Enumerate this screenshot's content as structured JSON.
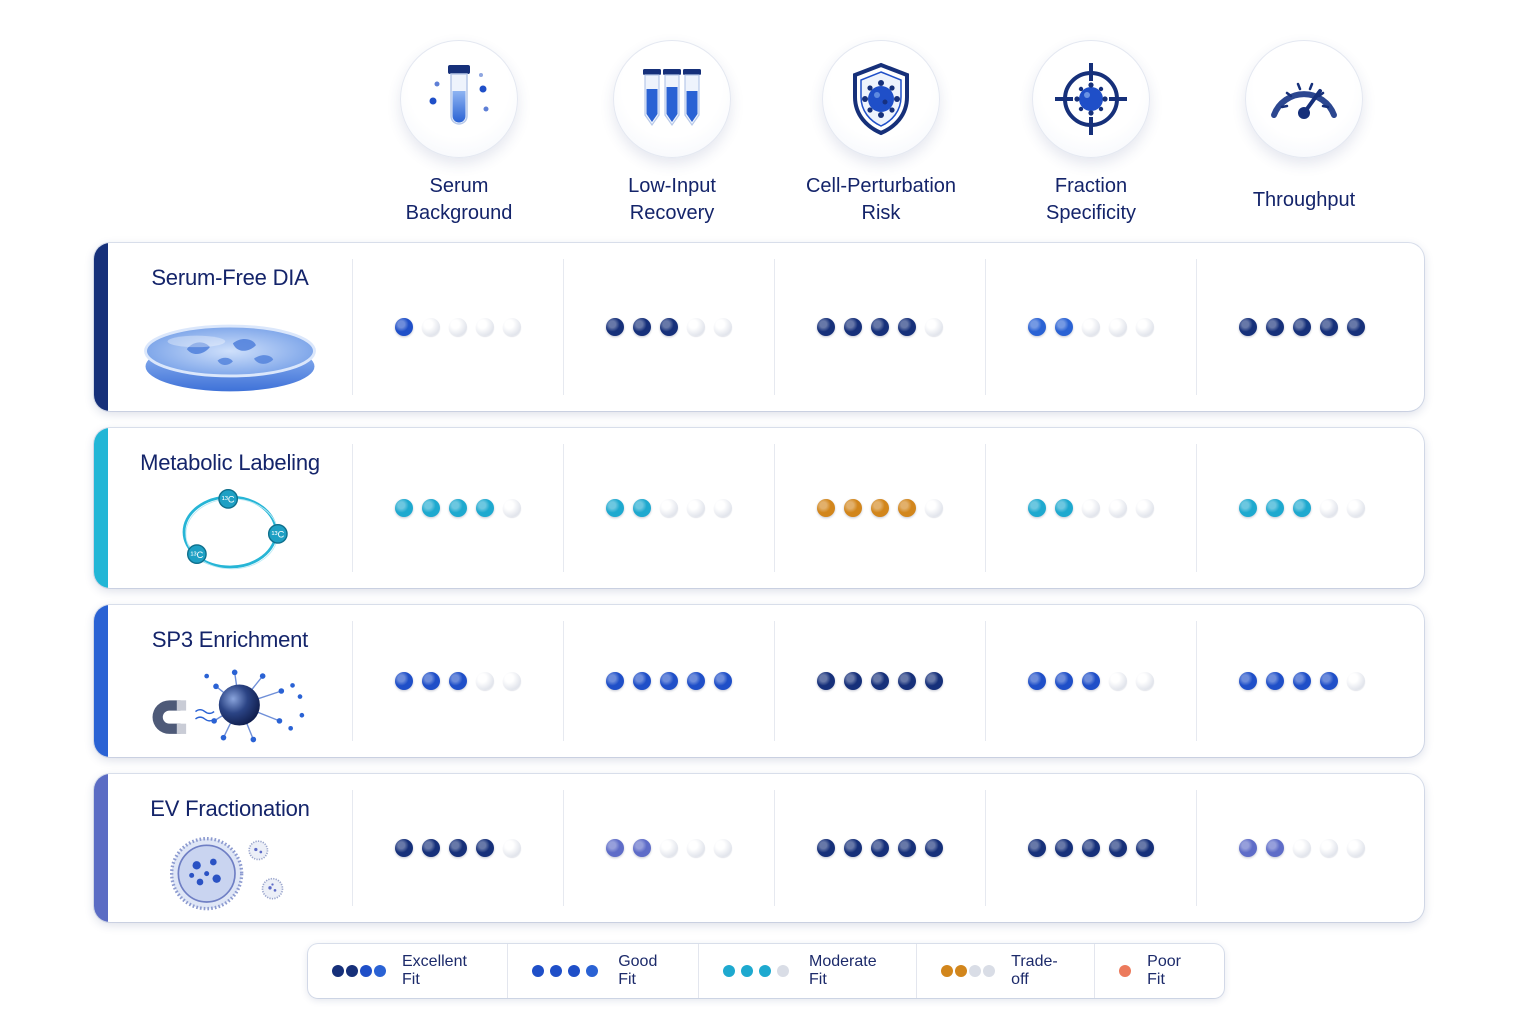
{
  "columns": [
    {
      "label": "Serum\nBackground",
      "icon": "serum-tube-icon"
    },
    {
      "label": "Low-Input\nRecovery",
      "icon": "test-tubes-icon"
    },
    {
      "label": "Cell-Perturbation\nRisk",
      "icon": "shield-cell-icon"
    },
    {
      "label": "Fraction\nSpecificity",
      "icon": "crosshair-target-icon"
    },
    {
      "label": "Throughput",
      "icon": "speedometer-gauge-icon"
    }
  ],
  "rows": [
    {
      "title": "Serum-Free DIA",
      "accent": "#16307a",
      "illustration": "petri-dish-icon",
      "ratings": [
        {
          "filled": 1,
          "color": "#1f4fc8"
        },
        {
          "filled": 3,
          "color": "#16307a"
        },
        {
          "filled": 4,
          "color": "#16307a"
        },
        {
          "filled": 2,
          "color": "#2a62d4"
        },
        {
          "filled": 5,
          "color": "#16307a"
        }
      ]
    },
    {
      "title": "Metabolic Labeling",
      "accent": "#22b6d6",
      "illustration": "isotope-ring-icon",
      "ratings": [
        {
          "filled": 4,
          "color": "#1ea9cf"
        },
        {
          "filled": 2,
          "color": "#1ea9cf"
        },
        {
          "filled": 4,
          "color": "#d2861c"
        },
        {
          "filled": 2,
          "color": "#1ea9cf"
        },
        {
          "filled": 3,
          "color": "#1ea9cf"
        }
      ]
    },
    {
      "title": "SP3 Enrichment",
      "accent": "#2a62d4",
      "illustration": "magnetic-bead-icon",
      "ratings": [
        {
          "filled": 3,
          "color": "#1f4fc8"
        },
        {
          "filled": 5,
          "color": "#1f4fc8"
        },
        {
          "filled": 5,
          "color": "#16307a"
        },
        {
          "filled": 3,
          "color": "#1f4fc8"
        },
        {
          "filled": 4,
          "color": "#1f4fc8"
        }
      ]
    },
    {
      "title": "EV Fractionation",
      "accent": "#5b6cc4",
      "illustration": "vesicle-icon",
      "ratings": [
        {
          "filled": 4,
          "color": "#16307a"
        },
        {
          "filled": 2,
          "color": "#5e6cc8"
        },
        {
          "filled": 5,
          "color": "#16307a"
        },
        {
          "filled": 5,
          "color": "#16307a"
        },
        {
          "filled": 2,
          "color": "#5e6cc8"
        }
      ]
    }
  ],
  "legend": [
    {
      "label": "Excellent Fit",
      "dots": [
        "#16307a",
        "#16307a",
        "#1f4fc8",
        "#2a62d4"
      ]
    },
    {
      "label": "Good Fit",
      "dots": [
        "#1f4fc8",
        "#1f4fc8",
        "#1f4fc8",
        "#2a62d4"
      ]
    },
    {
      "label": "Moderate Fit",
      "dots": [
        "#1ea9cf",
        "#1ea9cf",
        "#1ea9cf",
        "#d9dde6"
      ]
    },
    {
      "label": "Trade-off",
      "dots": [
        "#d2861c",
        "#d2861c",
        "#d9dde6",
        "#d9dde6"
      ]
    },
    {
      "label": "Poor Fit",
      "dots": [
        "#ec7a5c"
      ]
    }
  ]
}
